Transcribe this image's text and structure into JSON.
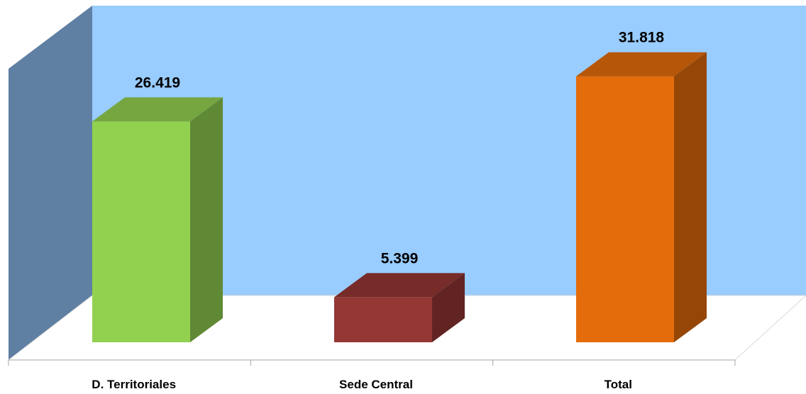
{
  "chart_data": {
    "type": "bar",
    "style": "3d-column",
    "title": "",
    "xlabel": "",
    "ylabel": "",
    "categories": [
      "D. Territoriales",
      "Sede Central",
      "Total"
    ],
    "values": [
      26419,
      5399,
      31818
    ],
    "value_labels": [
      "26.419",
      "5.399",
      "31.818"
    ],
    "ylim": [
      0,
      34000
    ],
    "grid": false,
    "legend": "none",
    "colors": {
      "bars": [
        "#92d050",
        "#953735",
        "#e46c0a"
      ],
      "back_wall": "#99ccff",
      "side_wall": "#5f7fa3",
      "floor": "#ffffff"
    }
  }
}
